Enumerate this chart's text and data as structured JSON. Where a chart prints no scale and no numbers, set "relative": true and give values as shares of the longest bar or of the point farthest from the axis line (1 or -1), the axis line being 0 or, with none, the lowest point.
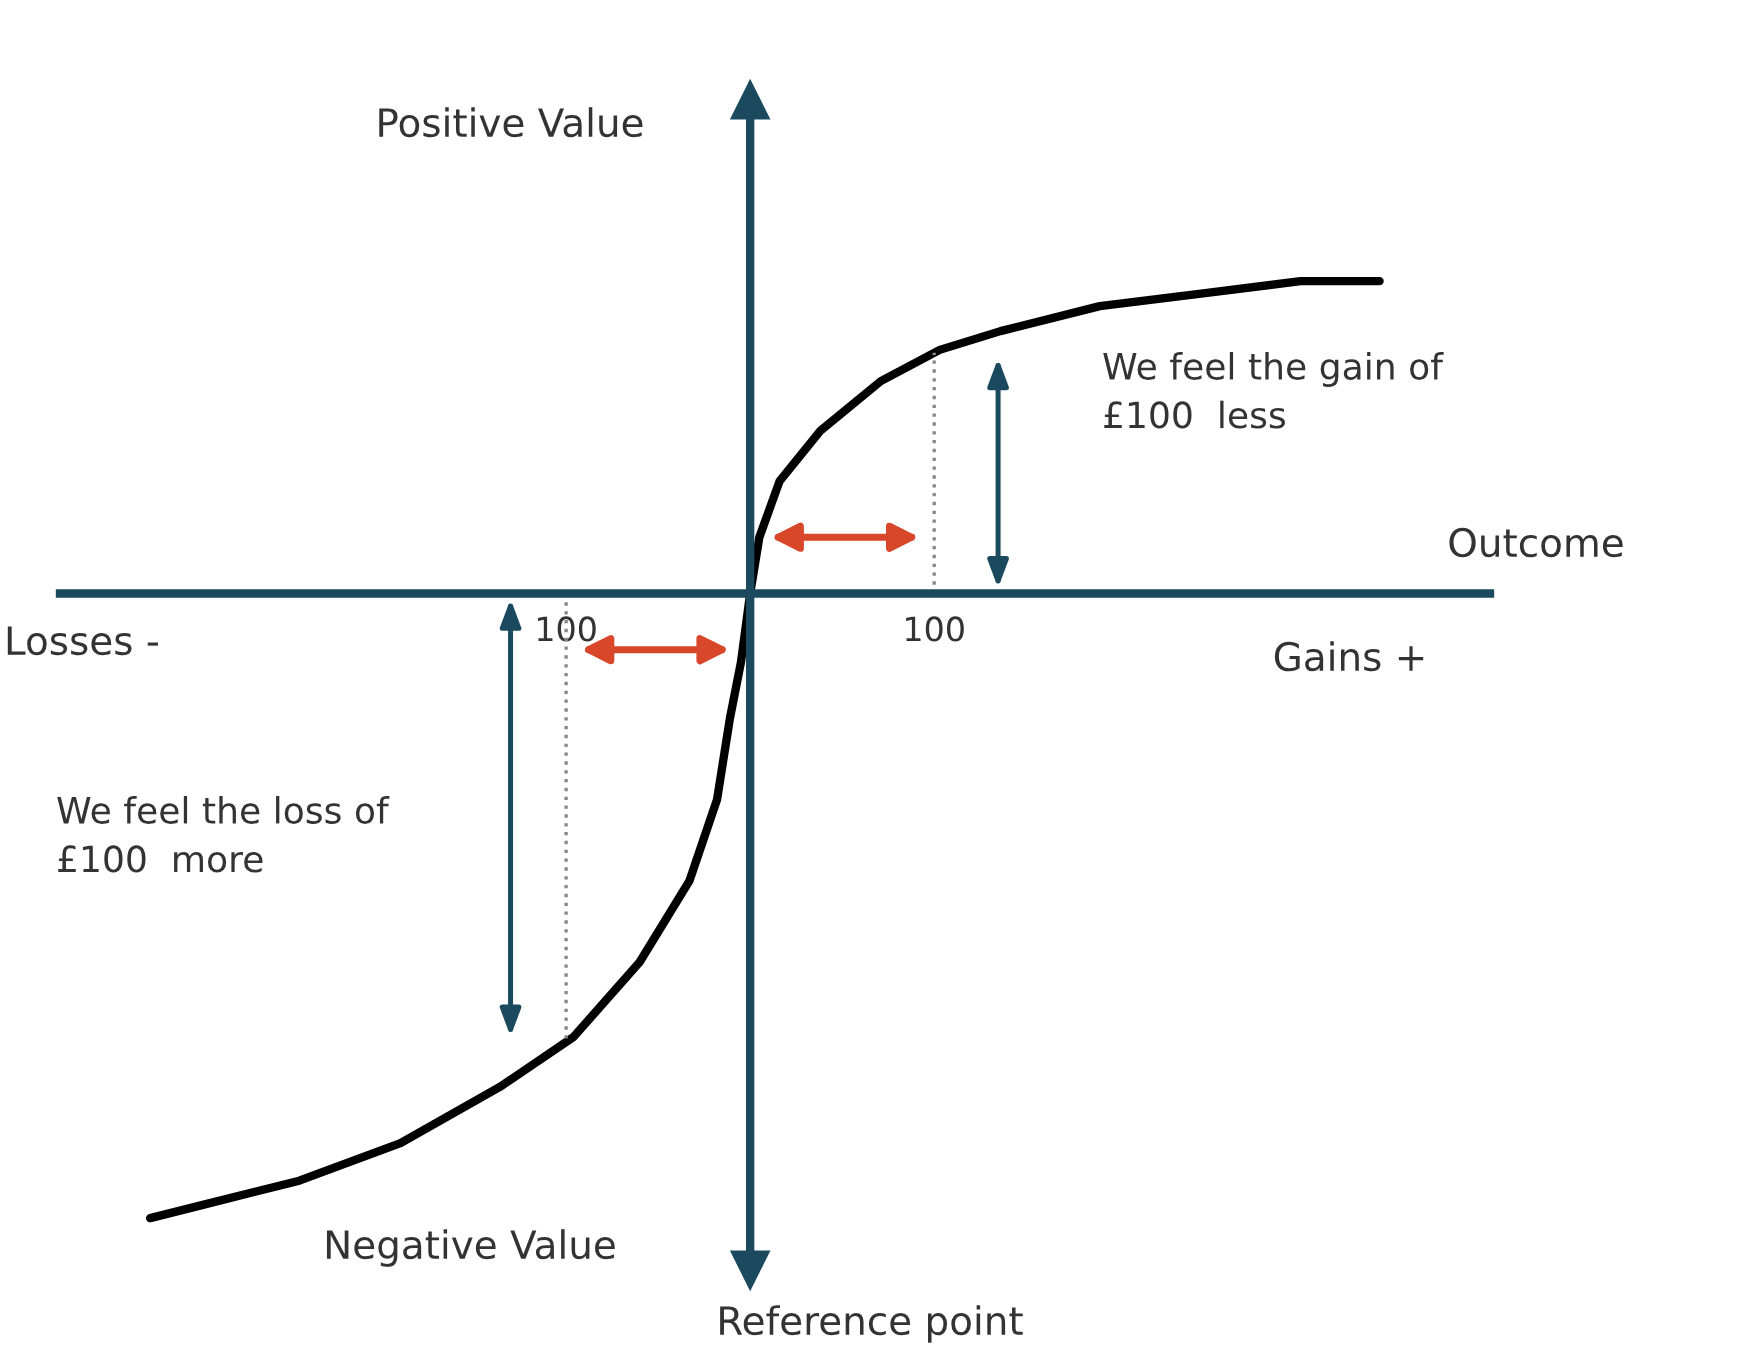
{
  "chart_data": {
    "type": "line",
    "relative": true,
    "xlabel": "Outcome",
    "ylabel": "Positive Value",
    "x": [
      -326,
      -299,
      -245,
      -190,
      -136,
      -96,
      -60,
      -33,
      -18,
      -11,
      -5,
      0,
      5,
      16,
      38,
      71,
      103,
      136,
      190,
      245,
      299,
      342
    ],
    "series": [
      {
        "color": "#000000",
        "values": [
          -1.0,
          -0.98,
          -0.94,
          -0.88,
          -0.79,
          -0.71,
          -0.59,
          -0.46,
          -0.33,
          -0.2,
          -0.11,
          0,
          0.09,
          0.18,
          0.26,
          0.34,
          0.39,
          0.42,
          0.46,
          0.48,
          0.5,
          0.5
        ]
      }
    ],
    "xlim": [
      -375,
      402
    ],
    "xticks": [
      {
        "value": -100,
        "label": "100"
      },
      {
        "value": 100,
        "label": "100"
      }
    ],
    "tick_labels": "x",
    "grid": false,
    "legend": false,
    "marker": "none",
    "line_style": "solid",
    "annotations": [
      "Losses -",
      "Gains +",
      "Negative Value",
      "Reference point",
      "We feel the gain of\n£100  less",
      "We feel the loss of\n£100  more"
    ]
  }
}
